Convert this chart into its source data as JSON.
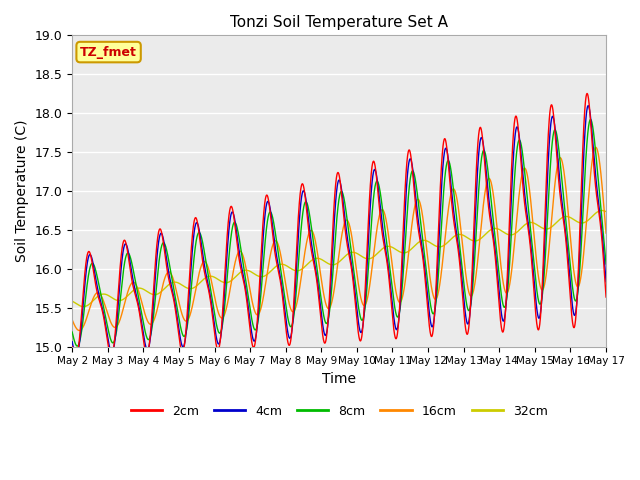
{
  "title": "Tonzi Soil Temperature Set A",
  "xlabel": "Time",
  "ylabel": "Soil Temperature (C)",
  "ylim": [
    15.0,
    19.0
  ],
  "yticks": [
    15.0,
    15.5,
    16.0,
    16.5,
    17.0,
    17.5,
    18.0,
    18.5,
    19.0
  ],
  "xtick_labels": [
    "May 2",
    "May 3",
    "May 4",
    "May 5",
    "May 6",
    "May 7",
    "May 8",
    "May 9",
    "May 10",
    "May 11",
    "May 12",
    "May 13",
    "May 14",
    "May 15",
    "May 16",
    "May 17"
  ],
  "series_colors": [
    "#ff0000",
    "#0000cc",
    "#00bb00",
    "#ff8800",
    "#cccc00"
  ],
  "series_labels": [
    "2cm",
    "4cm",
    "8cm",
    "16cm",
    "32cm"
  ],
  "annotation_text": "TZ_fmet",
  "annotation_color": "#cc0000",
  "annotation_bg": "#ffff99",
  "annotation_border": "#cc9900",
  "background_color": "#ebebeb",
  "n_points": 7200,
  "days": 15
}
